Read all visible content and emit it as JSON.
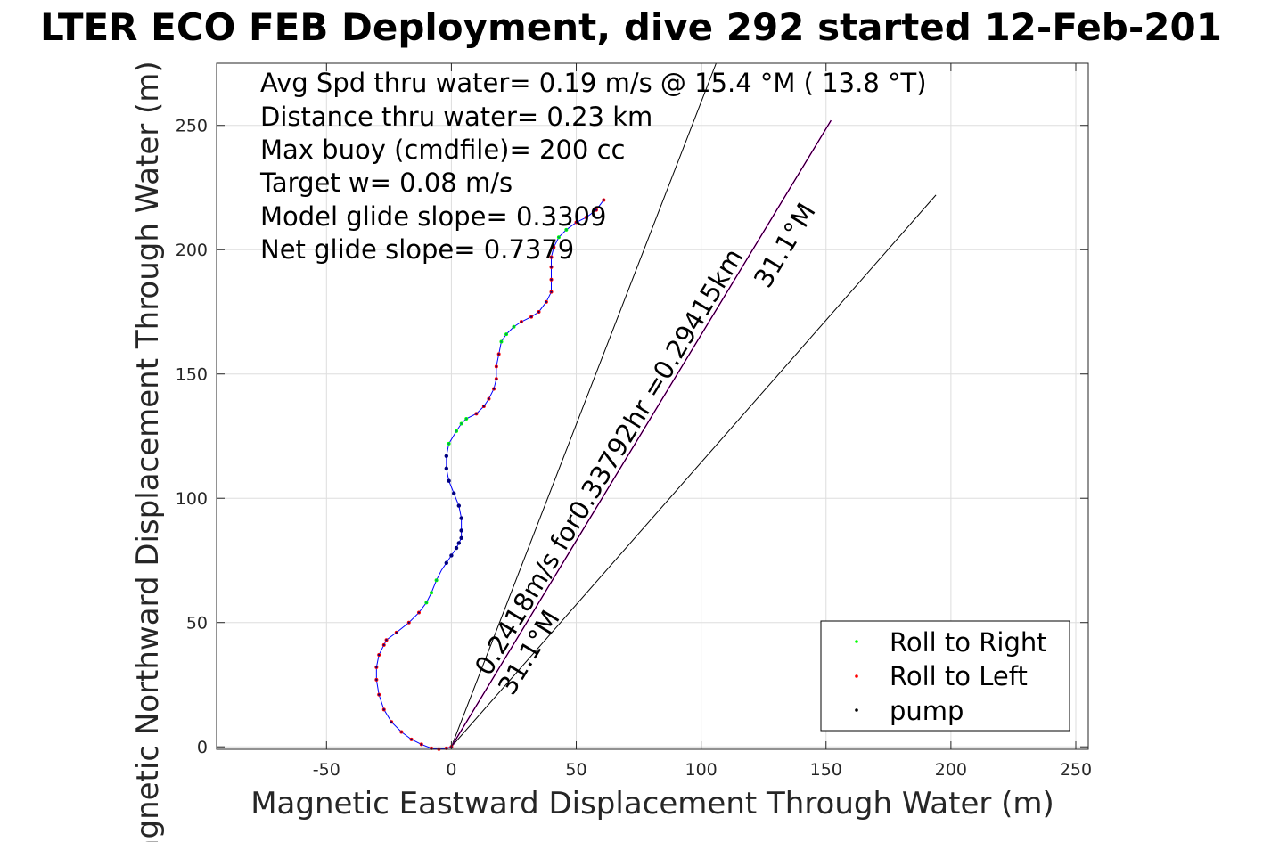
{
  "chart_data": {
    "type": "line",
    "title": "LTER ECO FEB Deployment, dive 292 started 12-Feb-201",
    "xlabel": "Magnetic Eastward Displacement Through Water (m)",
    "ylabel": "Magnetic Northward Displacement Through Water (m)",
    "xlim": [
      -94,
      255
    ],
    "ylim": [
      -1,
      275
    ],
    "xticks": [
      -50,
      0,
      50,
      100,
      150,
      200,
      250
    ],
    "xtick_labels": [
      "-50",
      "0",
      "50",
      "100",
      "150",
      "200",
      "250"
    ],
    "yticks": [
      0,
      50,
      100,
      150,
      200,
      250
    ],
    "ytick_labels": [
      "0",
      "50",
      "100",
      "150",
      "200",
      "250"
    ],
    "grid": true,
    "legend_placement": "bottom-right",
    "annotations": [
      "Avg Spd thru water=  0.19 m/s @  15.4 °M ( 13.8 °T)",
      "Distance thru water=  0.23 km",
      "Max buoy (cmdfile)= 200 cc",
      "Target w= 0.08 m/s",
      "Model glide slope= 0.3309",
      "Net glide slope= 0.7379"
    ],
    "rotated_labels": {
      "speed_text": "0.2418m/s for0.33792hr =0.29415km",
      "heading_low": "31.1°M",
      "heading_high": "31.1°M"
    },
    "legend": [
      {
        "label": "Roll to Right",
        "color": "#00ff00"
      },
      {
        "label": "Roll to Left",
        "color": "#ff0000"
      },
      {
        "label": "pump",
        "color": "#000000"
      }
    ],
    "track": {
      "name": "glider track",
      "color": "#0000ff",
      "points": [
        [
          0,
          0
        ],
        [
          -2,
          -0.6
        ],
        [
          -5,
          -0.9
        ],
        [
          -8,
          -0.6
        ],
        [
          -12,
          1
        ],
        [
          -16,
          3
        ],
        [
          -20,
          6
        ],
        [
          -24,
          10
        ],
        [
          -27,
          15
        ],
        [
          -29,
          21
        ],
        [
          -30,
          27
        ],
        [
          -30,
          32
        ],
        [
          -29,
          37
        ],
        [
          -27,
          41
        ],
        [
          -26,
          43
        ],
        [
          -22,
          46
        ],
        [
          -17,
          50
        ],
        [
          -13,
          54
        ],
        [
          -10,
          58
        ],
        [
          -8,
          62
        ],
        [
          -6,
          67
        ],
        [
          -4,
          71
        ],
        [
          -2,
          74
        ],
        [
          0,
          77
        ],
        [
          2,
          80
        ],
        [
          3,
          82
        ],
        [
          4,
          84
        ],
        [
          4,
          87
        ],
        [
          4,
          92
        ],
        [
          3,
          97
        ],
        [
          1,
          102
        ],
        [
          -1,
          107
        ],
        [
          -2,
          112
        ],
        [
          -2,
          117
        ],
        [
          -1,
          122
        ],
        [
          2,
          127
        ],
        [
          4,
          130
        ],
        [
          6,
          132
        ],
        [
          10,
          134
        ],
        [
          13,
          137
        ],
        [
          15,
          140
        ],
        [
          17,
          144
        ],
        [
          18,
          148
        ],
        [
          18,
          153
        ],
        [
          19,
          158
        ],
        [
          20,
          163
        ],
        [
          22,
          166
        ],
        [
          25,
          169
        ],
        [
          28,
          171
        ],
        [
          32,
          173
        ],
        [
          35,
          175
        ],
        [
          38,
          179
        ],
        [
          40,
          183
        ],
        [
          40,
          188
        ],
        [
          40,
          193
        ],
        [
          40,
          197
        ],
        [
          41,
          201
        ],
        [
          43,
          205
        ],
        [
          46,
          208
        ],
        [
          50,
          211
        ],
        [
          54,
          213
        ],
        [
          58,
          216
        ],
        [
          61,
          220
        ]
      ],
      "right_roll_ranges": [
        [
          18,
          20
        ],
        [
          32,
          37
        ],
        [
          42,
          55
        ],
        [
          56,
          58
        ]
      ],
      "left_roll_ranges": [
        [
          0,
          17
        ],
        [
          38,
          44
        ],
        [
          48,
          56
        ],
        [
          59,
          62
        ]
      ],
      "pump_range": [
        22,
        33
      ]
    },
    "reference_lines": [
      {
        "name": "bound-line-upper",
        "color": "#000000",
        "points": [
          [
            0,
            0
          ],
          [
            106,
            275
          ]
        ]
      },
      {
        "name": "bound-line-lower",
        "color": "#000000",
        "points": [
          [
            0,
            0
          ],
          [
            194,
            222
          ]
        ]
      },
      {
        "name": "net-displacement-line",
        "color": "#ff00ff",
        "points": [
          [
            0,
            0
          ],
          [
            152,
            252
          ]
        ]
      },
      {
        "name": "current-line",
        "color": "#000000",
        "points": [
          [
            0,
            0
          ],
          [
            152,
            252
          ]
        ]
      }
    ]
  }
}
